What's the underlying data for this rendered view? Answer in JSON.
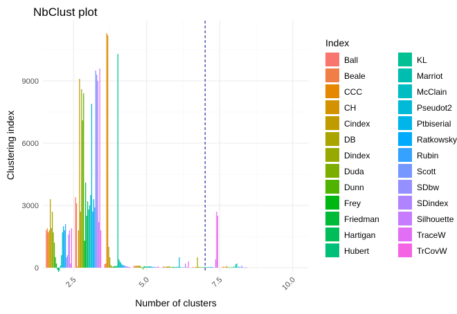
{
  "chart_data": {
    "type": "bar",
    "title": "NbClust plot",
    "xlabel": "Number of clusters",
    "ylabel": "Clustering index",
    "xlim": [
      1.45,
      10.55
    ],
    "ylim": [
      -200,
      11900
    ],
    "x_ticks": [
      "2.5",
      "5.0",
      "7.5",
      "10.0"
    ],
    "x_tick_values": [
      2.5,
      5.0,
      7.5,
      10.0
    ],
    "y_ticks": [
      "0",
      "3000",
      "6000",
      "9000"
    ],
    "y_tick_values": [
      0,
      3000,
      6000,
      9000
    ],
    "vline": {
      "x": 7.0,
      "style": "dashed",
      "color": "#00008b"
    },
    "grid": true,
    "legend_title": "Index",
    "legend_position": "right",
    "categories": [
      2,
      3,
      4,
      5,
      6,
      7,
      8
    ],
    "series": [
      {
        "name": "Ball",
        "color": "#F8766D",
        "values": [
          1800,
          3400,
          170,
          90,
          60,
          30,
          20
        ]
      },
      {
        "name": "Beale",
        "color": "#EF7F47",
        "values": [
          1900,
          3100,
          200,
          70,
          40,
          20,
          10
        ]
      },
      {
        "name": "CCC",
        "color": "#E58700",
        "values": [
          1700,
          60,
          11300,
          100,
          30,
          20,
          60
        ]
      },
      {
        "name": "CH",
        "color": "#D39200",
        "values": [
          1800,
          1800,
          11200,
          80,
          50,
          30,
          20
        ]
      },
      {
        "name": "Cindex",
        "color": "#C09B00",
        "values": [
          3300,
          9100,
          1000,
          100,
          60,
          30,
          30
        ]
      },
      {
        "name": "DB",
        "color": "#A9A400",
        "values": [
          1900,
          2700,
          500,
          90,
          50,
          500,
          80
        ]
      },
      {
        "name": "Dindex",
        "color": "#95A900",
        "values": [
          2700,
          8600,
          130,
          100,
          70,
          40,
          30
        ]
      },
      {
        "name": "Duda",
        "color": "#7CAE00",
        "values": [
          1700,
          7100,
          70,
          40,
          40,
          30,
          20
        ]
      },
      {
        "name": "Dunn",
        "color": "#4FB300",
        "values": [
          1200,
          8400,
          40,
          30,
          20,
          20,
          10
        ]
      },
      {
        "name": "Frey",
        "color": "#00B612",
        "values": [
          500,
          1300,
          60,
          -80,
          30,
          20,
          10
        ]
      },
      {
        "name": "Friedman",
        "color": "#00BA38",
        "values": [
          200,
          4100,
          90,
          70,
          40,
          30,
          20
        ]
      },
      {
        "name": "Hartigan",
        "color": "#00BC59",
        "values": [
          -100,
          2500,
          50,
          60,
          30,
          20,
          10
        ]
      },
      {
        "name": "Hubert",
        "color": "#00BF78",
        "values": [
          -200,
          3200,
          100,
          40,
          30,
          20,
          60
        ]
      },
      {
        "name": "KL",
        "color": "#00C094",
        "values": [
          -150,
          2800,
          10300,
          60,
          40,
          30,
          20
        ]
      },
      {
        "name": "Marriot",
        "color": "#00BEAF",
        "values": [
          100,
          3000,
          400,
          50,
          30,
          20,
          160
        ]
      },
      {
        "name": "McClain",
        "color": "#00BDC3",
        "values": [
          600,
          3500,
          300,
          70,
          40,
          30,
          200
        ]
      },
      {
        "name": "Pseudot2",
        "color": "#00BAD8",
        "values": [
          1700,
          7900,
          230,
          60,
          500,
          30,
          20
        ]
      },
      {
        "name": "Ptbiserial",
        "color": "#00B5EA",
        "values": [
          2000,
          2700,
          150,
          50,
          30,
          20,
          50
        ]
      },
      {
        "name": "Ratkowsky",
        "color": "#00ABFD",
        "values": [
          1800,
          3300,
          120,
          40,
          20,
          30,
          10
        ]
      },
      {
        "name": "Rubin",
        "color": "#35A2FF",
        "values": [
          2100,
          2900,
          110,
          30,
          20,
          40,
          20
        ]
      },
      {
        "name": "Scott",
        "color": "#7697FF",
        "values": [
          500,
          9500,
          90,
          40,
          20,
          30,
          100
        ]
      },
      {
        "name": "SDbw",
        "color": "#9590FF",
        "values": [
          600,
          9300,
          70,
          30,
          20,
          20,
          10
        ]
      },
      {
        "name": "SDindex",
        "color": "#B184FF",
        "values": [
          1600,
          9000,
          60,
          30,
          200,
          10,
          10
        ]
      },
      {
        "name": "Silhouette",
        "color": "#C77CFF",
        "values": [
          1800,
          2200,
          50,
          20,
          30,
          400,
          10
        ]
      },
      {
        "name": "TraceW",
        "color": "#E36EF6",
        "values": [
          200,
          9600,
          40,
          60,
          20,
          2700,
          10
        ]
      },
      {
        "name": "TrCovW",
        "color": "#F564E3",
        "values": [
          1900,
          1800,
          30,
          20,
          300,
          2500,
          10
        ]
      }
    ]
  }
}
